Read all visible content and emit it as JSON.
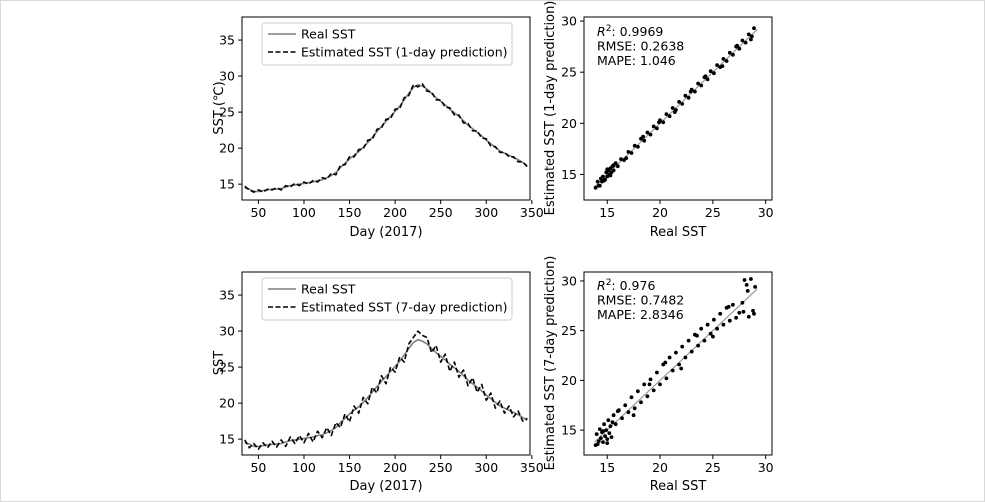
{
  "colors": {
    "real": "#7f7f7f",
    "estimated": "#000000",
    "fit": "#9a9a9a",
    "axis": "#000000",
    "border": "#d9d9d9"
  },
  "chart_data": [
    {
      "type": "line",
      "id": "ts1",
      "xlabel": "Day (2017)",
      "ylabel": "SST (℃)",
      "xlim": [
        32,
        348
      ],
      "ylim": [
        12.8,
        38.2
      ],
      "xticks": [
        50,
        100,
        150,
        200,
        250,
        300,
        350
      ],
      "yticks": [
        15,
        20,
        25,
        30,
        35
      ],
      "legend_position": "upper-left",
      "series": [
        {
          "name": "Real SST",
          "style": "solid",
          "x": [
            35,
            40,
            45,
            50,
            55,
            60,
            65,
            70,
            75,
            80,
            85,
            90,
            95,
            100,
            105,
            110,
            115,
            120,
            125,
            130,
            135,
            140,
            145,
            150,
            155,
            160,
            165,
            170,
            175,
            180,
            185,
            190,
            195,
            200,
            205,
            210,
            215,
            220,
            225,
            230,
            235,
            240,
            245,
            250,
            255,
            260,
            265,
            270,
            275,
            280,
            285,
            290,
            295,
            300,
            305,
            310,
            315,
            320,
            325,
            330,
            335,
            340,
            345
          ],
          "y": [
            14.5,
            14.3,
            14.0,
            14.0,
            14.1,
            14.2,
            14.3,
            14.3,
            14.4,
            14.6,
            14.8,
            14.9,
            15.0,
            15.1,
            15.2,
            15.3,
            15.5,
            15.6,
            15.9,
            16.2,
            16.6,
            17.3,
            17.9,
            18.5,
            19.0,
            19.5,
            20.1,
            20.8,
            21.5,
            22.3,
            23.0,
            23.7,
            24.4,
            25.1,
            25.8,
            26.7,
            27.6,
            28.4,
            28.8,
            28.6,
            28.2,
            27.6,
            27.0,
            26.5,
            26.0,
            25.4,
            24.9,
            24.4,
            23.8,
            23.2,
            22.7,
            22.2,
            21.7,
            21.1,
            20.6,
            20.1,
            19.6,
            19.3,
            19.0,
            18.7,
            18.4,
            18.0,
            17.6
          ]
        },
        {
          "name": "Estimated SST (1-day prediction)",
          "style": "dashed",
          "x": [
            35,
            40,
            45,
            50,
            55,
            60,
            65,
            70,
            75,
            80,
            85,
            90,
            95,
            100,
            105,
            110,
            115,
            120,
            125,
            130,
            135,
            140,
            145,
            150,
            155,
            160,
            165,
            170,
            175,
            180,
            185,
            190,
            195,
            200,
            205,
            210,
            215,
            220,
            225,
            230,
            235,
            240,
            245,
            250,
            255,
            260,
            265,
            270,
            275,
            280,
            285,
            290,
            295,
            300,
            305,
            310,
            315,
            320,
            325,
            330,
            335,
            340,
            345
          ],
          "y": [
            14.7,
            14.2,
            13.9,
            14.2,
            13.9,
            14.3,
            14.2,
            14.5,
            14.2,
            14.8,
            14.6,
            15.1,
            14.8,
            15.3,
            15.0,
            15.5,
            15.3,
            15.9,
            15.7,
            16.5,
            16.3,
            17.6,
            17.7,
            18.8,
            18.8,
            19.8,
            19.9,
            21.1,
            21.2,
            22.6,
            22.8,
            24.0,
            24.1,
            25.4,
            25.5,
            27.0,
            27.3,
            28.8,
            28.5,
            28.9,
            27.9,
            27.8,
            26.7,
            26.7,
            25.7,
            25.6,
            24.6,
            24.6,
            23.5,
            23.4,
            22.4,
            22.4,
            21.4,
            21.3,
            20.3,
            20.2,
            19.4,
            19.4,
            18.8,
            18.8,
            18.1,
            18.1,
            17.4
          ]
        }
      ]
    },
    {
      "type": "scatter",
      "id": "sc1",
      "xlabel": "Real SST",
      "ylabel": "Estimated SST (1-day prediction)",
      "xlim": [
        12.8,
        30.6
      ],
      "ylim": [
        12.5,
        30.4
      ],
      "xticks": [
        15,
        20,
        25,
        30
      ],
      "yticks": [
        15,
        20,
        25,
        30
      ],
      "stats": [
        {
          "label": "R",
          "sup": "2",
          "value": ": 0.9969"
        },
        {
          "label": "RMSE: 0.2638",
          "sup": "",
          "value": ""
        },
        {
          "label": "MAPE: 1.046",
          "sup": "",
          "value": ""
        }
      ],
      "fit_line": {
        "x": [
          13.8,
          29.2
        ],
        "y": [
          13.8,
          29.2
        ]
      },
      "x": [
        13.9,
        14.1,
        14.2,
        14.4,
        14.5,
        14.6,
        14.8,
        14.9,
        15.0,
        15.1,
        15.2,
        15.3,
        15.4,
        15.5,
        15.6,
        15.8,
        16.0,
        16.3,
        16.6,
        17.0,
        17.3,
        17.6,
        17.9,
        18.2,
        18.5,
        18.8,
        19.1,
        19.4,
        19.7,
        20.0,
        20.3,
        20.6,
        20.9,
        21.2,
        21.5,
        21.8,
        22.1,
        22.4,
        22.7,
        23.0,
        23.3,
        23.6,
        23.9,
        24.2,
        24.5,
        24.8,
        25.1,
        25.4,
        25.7,
        26.0,
        26.3,
        26.6,
        26.9,
        27.2,
        27.5,
        27.8,
        28.1,
        28.4,
        28.7,
        28.9,
        14.3,
        14.7,
        15.0,
        15.3,
        15.6,
        16.8,
        18.4,
        19.9,
        21.4,
        22.9,
        24.3,
        25.9,
        27.3,
        28.6
      ],
      "y": [
        13.7,
        14.3,
        13.9,
        14.6,
        14.3,
        14.8,
        14.5,
        15.2,
        14.8,
        15.4,
        15.0,
        15.6,
        15.2,
        15.8,
        15.4,
        16.1,
        15.8,
        16.5,
        16.4,
        17.2,
        17.1,
        17.8,
        17.7,
        18.5,
        18.3,
        19.1,
        18.9,
        19.7,
        19.5,
        20.3,
        20.1,
        20.9,
        20.7,
        21.5,
        21.3,
        22.1,
        21.9,
        22.7,
        22.5,
        23.3,
        23.1,
        23.9,
        23.7,
        24.5,
        24.3,
        25.1,
        24.9,
        25.7,
        25.5,
        26.3,
        26.1,
        26.9,
        26.7,
        27.5,
        27.3,
        28.1,
        27.9,
        28.7,
        28.5,
        29.3,
        13.9,
        14.4,
        15.5,
        14.9,
        15.9,
        16.6,
        18.7,
        20.1,
        21.1,
        23.1,
        24.6,
        25.6,
        27.6,
        28.2
      ]
    },
    {
      "type": "line",
      "id": "ts2",
      "xlabel": "Day (2017)",
      "ylabel": "SST",
      "xlim": [
        32,
        348
      ],
      "ylim": [
        12.8,
        38.2
      ],
      "xticks": [
        50,
        100,
        150,
        200,
        250,
        300,
        350
      ],
      "yticks": [
        15,
        20,
        25,
        30,
        35
      ],
      "legend_position": "upper-left",
      "series": [
        {
          "name": "Real SST",
          "style": "solid",
          "x": [
            35,
            40,
            45,
            50,
            55,
            60,
            65,
            70,
            75,
            80,
            85,
            90,
            95,
            100,
            105,
            110,
            115,
            120,
            125,
            130,
            135,
            140,
            145,
            150,
            155,
            160,
            165,
            170,
            175,
            180,
            185,
            190,
            195,
            200,
            205,
            210,
            215,
            220,
            225,
            230,
            235,
            240,
            245,
            250,
            255,
            260,
            265,
            270,
            275,
            280,
            285,
            290,
            295,
            300,
            305,
            310,
            315,
            320,
            325,
            330,
            335,
            340,
            345
          ],
          "y": [
            14.5,
            14.3,
            14.0,
            14.0,
            14.1,
            14.2,
            14.3,
            14.3,
            14.4,
            14.6,
            14.8,
            14.9,
            15.0,
            15.1,
            15.2,
            15.3,
            15.5,
            15.6,
            15.9,
            16.2,
            16.6,
            17.3,
            17.9,
            18.5,
            19.0,
            19.5,
            20.1,
            20.8,
            21.5,
            22.3,
            23.0,
            23.7,
            24.4,
            25.1,
            25.8,
            26.7,
            27.6,
            28.4,
            28.8,
            28.6,
            28.2,
            27.6,
            27.0,
            26.5,
            26.0,
            25.4,
            24.9,
            24.4,
            23.8,
            23.2,
            22.7,
            22.2,
            21.7,
            21.1,
            20.6,
            20.1,
            19.6,
            19.3,
            19.0,
            18.7,
            18.4,
            18.0,
            17.6
          ]
        },
        {
          "name": "Estimated SST (7-day prediction)",
          "style": "dashed",
          "x": [
            35,
            40,
            45,
            50,
            55,
            60,
            65,
            70,
            75,
            80,
            85,
            90,
            95,
            100,
            105,
            110,
            115,
            120,
            125,
            130,
            135,
            140,
            145,
            150,
            155,
            160,
            165,
            170,
            175,
            180,
            185,
            190,
            195,
            200,
            205,
            210,
            215,
            220,
            225,
            230,
            235,
            240,
            245,
            250,
            255,
            260,
            265,
            270,
            275,
            280,
            285,
            290,
            295,
            300,
            305,
            310,
            315,
            320,
            325,
            330,
            335,
            340,
            345
          ],
          "y": [
            14.9,
            13.8,
            14.4,
            13.6,
            14.5,
            13.8,
            14.7,
            13.9,
            14.9,
            14.0,
            15.3,
            14.4,
            15.5,
            14.5,
            15.8,
            14.6,
            16.1,
            15.2,
            16.6,
            15.5,
            17.3,
            16.6,
            18.5,
            17.4,
            19.6,
            18.6,
            20.8,
            19.9,
            22.2,
            21.4,
            23.8,
            22.7,
            25.0,
            24.3,
            26.4,
            25.7,
            28.2,
            29.1,
            30.0,
            29.4,
            29.1,
            27.0,
            28.0,
            25.7,
            26.8,
            24.4,
            25.7,
            23.6,
            24.6,
            22.4,
            23.5,
            21.5,
            22.6,
            20.4,
            21.4,
            19.3,
            20.3,
            18.6,
            19.6,
            18.1,
            18.9,
            17.5,
            17.9
          ]
        }
      ]
    },
    {
      "type": "scatter",
      "id": "sc2",
      "xlabel": "Real SST",
      "ylabel": "Estimated SST (7-day prediction)",
      "xlim": [
        12.8,
        30.6
      ],
      "ylim": [
        12.5,
        30.9
      ],
      "xticks": [
        15,
        20,
        25,
        30
      ],
      "yticks": [
        15,
        20,
        25,
        30
      ],
      "stats": [
        {
          "label": "R",
          "sup": "2",
          "value": ": 0.976"
        },
        {
          "label": "RMSE: 0.7482",
          "sup": "",
          "value": ""
        },
        {
          "label": "MAPE: 2.8346",
          "sup": "",
          "value": ""
        }
      ],
      "fit_line": {
        "x": [
          13.8,
          29.2
        ],
        "y": [
          13.8,
          29.2
        ]
      },
      "x": [
        13.9,
        14.0,
        14.2,
        14.3,
        14.4,
        14.5,
        14.6,
        14.7,
        14.8,
        14.9,
        15.0,
        15.1,
        15.2,
        15.3,
        15.4,
        15.6,
        15.8,
        16.1,
        16.4,
        16.7,
        17.0,
        17.3,
        17.6,
        17.9,
        18.2,
        18.5,
        18.8,
        19.1,
        19.4,
        19.7,
        20.0,
        20.3,
        20.6,
        20.9,
        21.2,
        21.5,
        21.8,
        22.1,
        22.4,
        22.7,
        23.0,
        23.3,
        23.6,
        23.9,
        24.2,
        24.5,
        24.8,
        25.1,
        25.4,
        25.7,
        26.0,
        26.3,
        26.6,
        26.9,
        27.2,
        27.5,
        27.8,
        28.0,
        28.2,
        28.4,
        28.6,
        28.8,
        29.0,
        14.1,
        14.6,
        15.0,
        15.5,
        16.0,
        17.5,
        19.0,
        20.5,
        22.0,
        23.5,
        25.0,
        26.5,
        27.9,
        28.3,
        28.9
      ],
      "y": [
        13.5,
        14.6,
        13.9,
        15.1,
        14.2,
        14.8,
        13.8,
        15.6,
        14.4,
        15.0,
        14.1,
        16.0,
        14.7,
        15.4,
        14.3,
        16.5,
        15.6,
        17.0,
        16.2,
        17.5,
        16.8,
        18.3,
        17.2,
        18.9,
        17.8,
        19.6,
        18.4,
        20.1,
        19.0,
        20.8,
        19.6,
        21.6,
        20.2,
        22.3,
        21.0,
        22.8,
        21.6,
        23.4,
        22.3,
        24.0,
        22.9,
        24.6,
        23.5,
        25.2,
        24.0,
        25.6,
        24.7,
        26.1,
        25.2,
        26.7,
        25.6,
        27.3,
        26.0,
        27.6,
        26.3,
        26.8,
        27.8,
        30.1,
        29.6,
        26.4,
        30.2,
        27.0,
        29.4,
        13.6,
        14.9,
        13.7,
        15.8,
        16.9,
        16.5,
        19.6,
        21.8,
        21.2,
        24.5,
        24.4,
        27.4,
        26.9,
        29.0,
        26.7
      ]
    }
  ]
}
